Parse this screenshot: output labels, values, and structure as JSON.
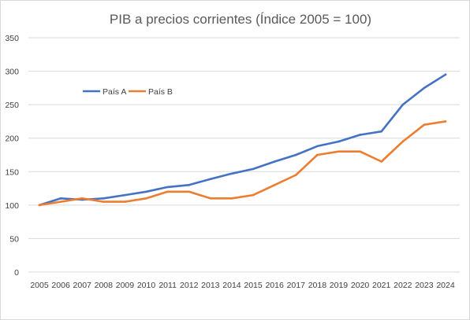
{
  "chart_data": {
    "type": "line",
    "title": "PIB a precios corrientes (Índice 2005 = 100)",
    "xlabel": "",
    "ylabel": "",
    "ylim": [
      0,
      350
    ],
    "yticks": [
      "0",
      "50",
      "100",
      "150",
      "200",
      "250",
      "300",
      "350"
    ],
    "categories": [
      "2005",
      "2006",
      "2007",
      "2008",
      "2009",
      "2010",
      "2011",
      "2012",
      "2013",
      "2014",
      "2015",
      "2016",
      "2017",
      "2018",
      "2019",
      "2020",
      "2021",
      "2022",
      "2023",
      "2024"
    ],
    "grid": true,
    "legend": "top-left",
    "series": [
      {
        "name": "País A",
        "color": "#4472C4",
        "values": [
          100,
          110,
          108,
          110,
          115,
          120,
          127,
          130,
          139,
          147,
          154,
          165,
          175,
          188,
          195,
          205,
          210,
          250,
          275,
          295
        ]
      },
      {
        "name": "País B",
        "color": "#ED7D31",
        "values": [
          100,
          105,
          110,
          105,
          105,
          110,
          120,
          120,
          110,
          110,
          115,
          130,
          145,
          175,
          180,
          180,
          165,
          195,
          220,
          225
        ]
      }
    ]
  }
}
